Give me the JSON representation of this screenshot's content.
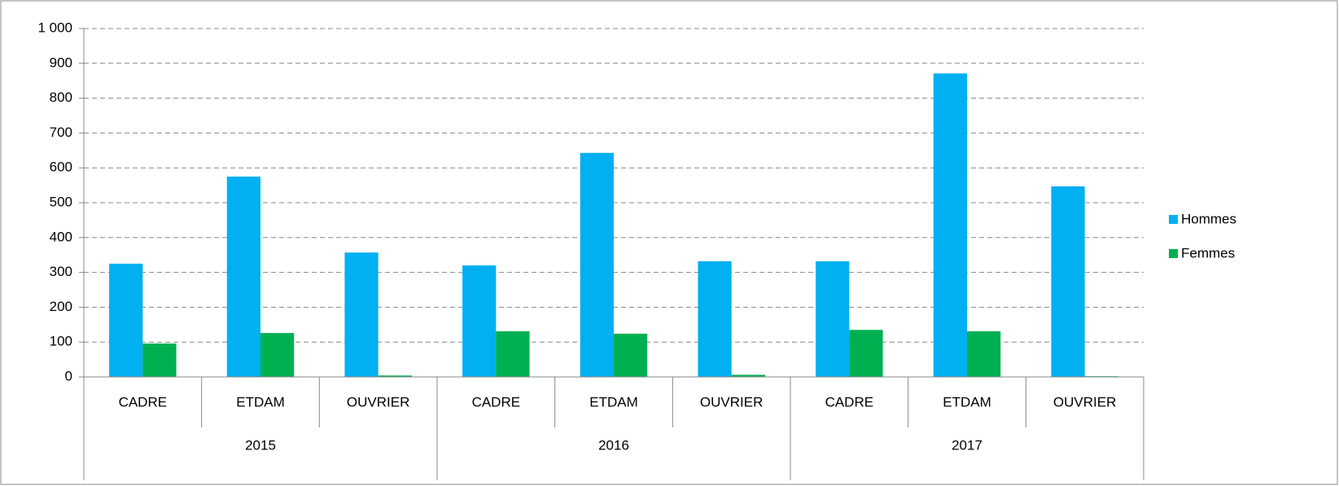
{
  "chart_data": {
    "type": "bar",
    "categories": [
      "CADRE",
      "ETDAM",
      "OUVRIER",
      "CADRE",
      "ETDAM",
      "OUVRIER",
      "CADRE",
      "ETDAM",
      "OUVRIER"
    ],
    "groups": [
      "2015",
      "2016",
      "2017"
    ],
    "series": [
      {
        "name": "Hommes",
        "color": "#00b0f0",
        "values": [
          325,
          575,
          357,
          320,
          643,
          332,
          332,
          871,
          547
        ]
      },
      {
        "name": "Femmes",
        "color": "#00b050",
        "values": [
          96,
          126,
          4,
          131,
          124,
          6,
          135,
          131,
          2
        ]
      }
    ],
    "ylim": [
      0,
      1000
    ],
    "yticks": [
      0,
      100,
      200,
      300,
      400,
      500,
      600,
      700,
      800,
      900,
      {
        "value": 1000,
        "label": "1 000"
      }
    ],
    "grid": true,
    "legend": "right"
  }
}
